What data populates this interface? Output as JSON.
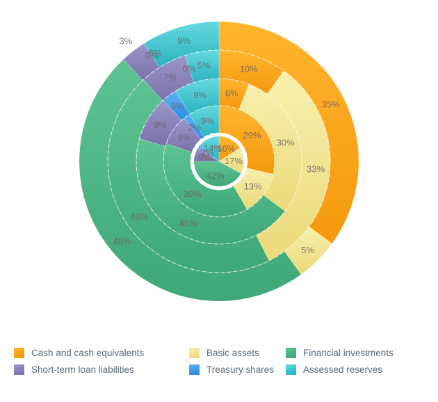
{
  "chart_data": {
    "type": "pie",
    "subtype": "multilevel-donut",
    "legend_position": "bottom",
    "start_angle_deg": 0,
    "direction": "clockwise",
    "value_suffix": "%",
    "grid": "dashed-ring-separators",
    "series": [
      {
        "name": "Cash and cash equivalents",
        "color": "#f5980c",
        "color_light": "#ffb52e"
      },
      {
        "name": "Basic assets",
        "color": "#ebd979",
        "color_light": "#f7f0ae"
      },
      {
        "name": "Financial investments",
        "color": "#3fa877",
        "color_light": "#5ec392"
      },
      {
        "name": "Short-term loan liabilities",
        "color": "#7a73aa",
        "color_light": "#9c95c8"
      },
      {
        "name": "Treasury shares",
        "color": "#2b8cde",
        "color_light": "#5fb2f7"
      },
      {
        "name": "Assessed reserves",
        "color": "#2bb3be",
        "color_light": "#64d9e0"
      }
    ],
    "rings": [
      {
        "name": "ring-1-inner",
        "values": [
          16,
          17,
          42,
          9,
          2,
          14
        ]
      },
      {
        "name": "ring-2",
        "values": [
          29,
          13,
          39,
          9,
          2,
          9
        ]
      },
      {
        "name": "ring-3",
        "values": [
          6,
          30,
          45,
          9,
          3,
          9
        ]
      },
      {
        "name": "ring-4",
        "values": [
          10,
          33,
          46,
          7,
          0,
          5
        ]
      },
      {
        "name": "ring-5-outer",
        "values": [
          35,
          5,
          48,
          3,
          0,
          9
        ]
      }
    ],
    "stray_labels": [
      {
        "text": "5%",
        "ring_index": 4,
        "angle_deg": 329.4
      }
    ],
    "label_color": "#6d6266"
  }
}
